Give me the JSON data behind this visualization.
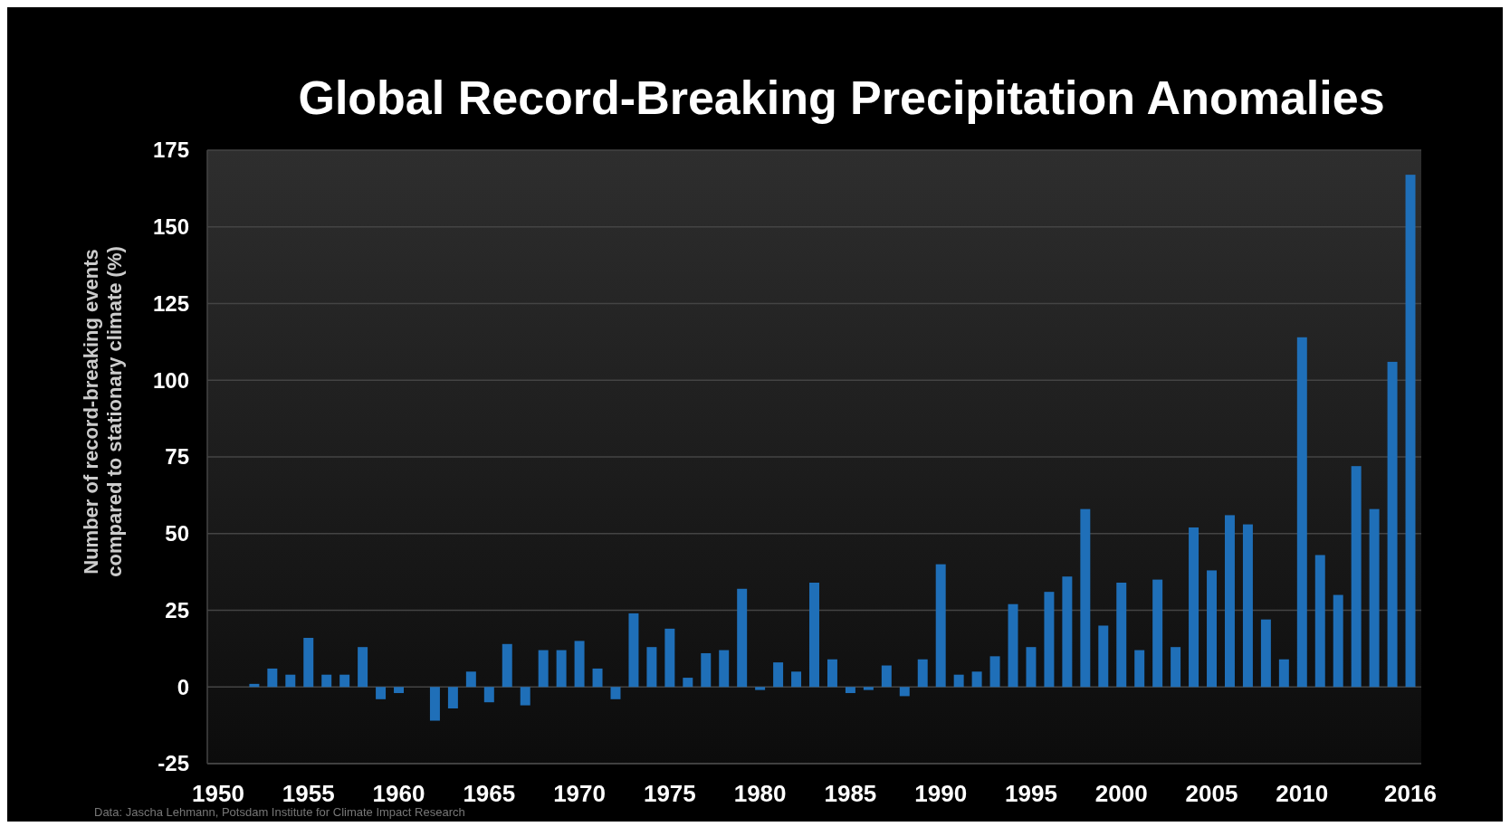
{
  "chart_data": {
    "type": "bar",
    "title": "Global Record-Breaking Precipitation Anomalies",
    "ylabel": "Number of record-breaking events\ncompared to stationary climate (%)",
    "x": [
      1952,
      1953,
      1954,
      1955,
      1956,
      1957,
      1958,
      1959,
      1960,
      1961,
      1962,
      1963,
      1964,
      1965,
      1966,
      1967,
      1968,
      1969,
      1970,
      1971,
      1972,
      1973,
      1974,
      1975,
      1976,
      1977,
      1978,
      1979,
      1980,
      1981,
      1982,
      1983,
      1984,
      1985,
      1986,
      1987,
      1988,
      1989,
      1990,
      1991,
      1992,
      1993,
      1994,
      1995,
      1996,
      1997,
      1998,
      1999,
      2000,
      2001,
      2002,
      2003,
      2004,
      2005,
      2006,
      2007,
      2008,
      2009,
      2010,
      2011,
      2012,
      2013,
      2014,
      2015,
      2016
    ],
    "values": [
      1,
      6,
      4,
      16,
      4,
      4,
      13,
      -4,
      -2,
      0,
      -11,
      -7,
      5,
      -5,
      14,
      -6,
      12,
      12,
      15,
      6,
      -4,
      24,
      13,
      19,
      3,
      11,
      12,
      32,
      -1,
      8,
      5,
      34,
      9,
      -2,
      -1,
      7,
      -3,
      9,
      40,
      4,
      5,
      10,
      27,
      13,
      31,
      36,
      58,
      20,
      34,
      12,
      35,
      13,
      52,
      38,
      56,
      53,
      22,
      9,
      114,
      43,
      30,
      72,
      58,
      106,
      167
    ],
    "color": "#1f6fb8",
    "xlim": [
      1949.4,
      2016.6
    ],
    "xticks": [
      1950,
      1955,
      1960,
      1965,
      1970,
      1975,
      1980,
      1985,
      1990,
      1995,
      2000,
      2005,
      2010,
      2016
    ],
    "ylim": [
      -25,
      175
    ],
    "yticks": [
      -25,
      0,
      25,
      50,
      75,
      100,
      125,
      150,
      175
    ],
    "grid": "y",
    "annotations": [
      "Data: Jascha Lehmann, Potsdam Institute for Climate Impact Research"
    ]
  }
}
